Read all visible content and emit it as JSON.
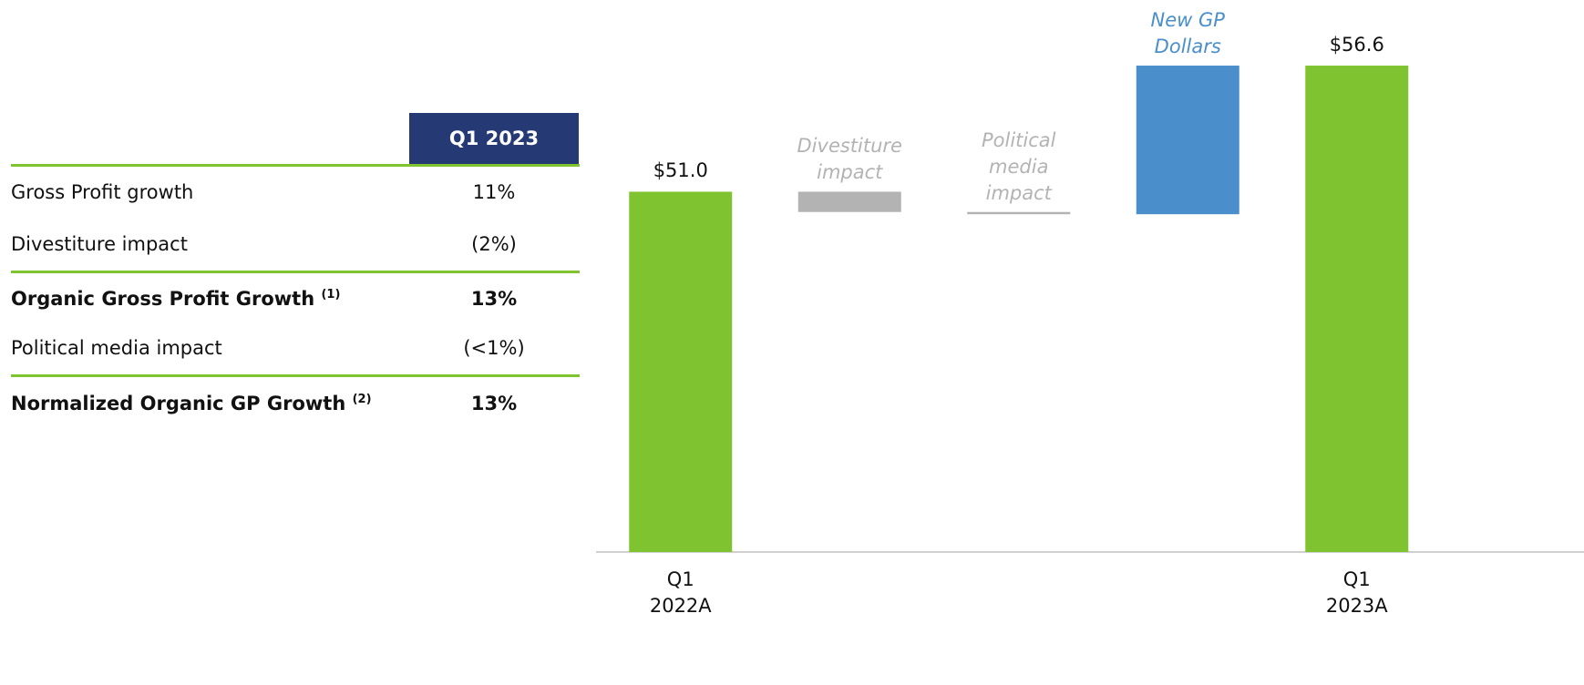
{
  "table": {
    "header": "Q1 2023",
    "rows": [
      {
        "label": "Gross Profit growth",
        "value": "11%",
        "bold": false
      },
      {
        "label": "Divestiture impact",
        "value": "(2%)",
        "bold": false
      },
      {
        "label": "Organic Gross Profit Growth",
        "note": "(1)",
        "value": "13%",
        "bold": true
      },
      {
        "label": "Political media impact",
        "value": "(<1%)",
        "bold": false
      },
      {
        "label": "Normalized Organic GP Growth",
        "note": "(2)",
        "value": "13%",
        "bold": true
      }
    ]
  },
  "chart_data": {
    "type": "waterfall",
    "categories": [
      "Q1 2022A",
      "Divestiture impact",
      "Political media impact",
      "New GP Dollars",
      "Q1 2023A"
    ],
    "values": [
      51.0,
      -0.9,
      -0.1,
      6.6,
      56.6
    ],
    "value_labels": [
      "$51.0",
      null,
      null,
      null,
      "$56.6"
    ],
    "totals": [
      true,
      false,
      false,
      false,
      true
    ],
    "colors": [
      "#80c331",
      "#b3b3b3",
      "#b3b3b3",
      "#4a8fcb",
      "#80c331"
    ],
    "ylim": [
      35,
      59
    ]
  }
}
